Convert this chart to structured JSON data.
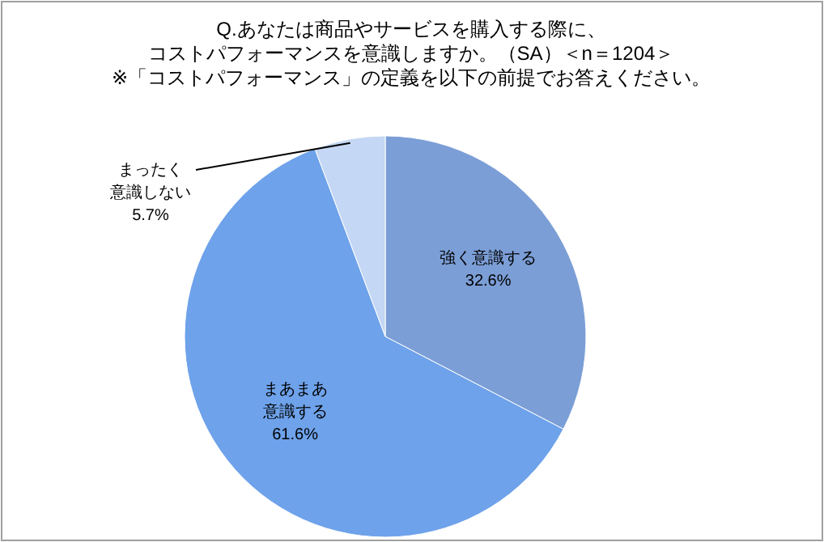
{
  "chart_data": {
    "type": "pie",
    "title": "Q.あなたは商品やサービスを購入する際に、コストパフォーマンスを意識しますか。（SA）＜n＝1204＞",
    "subtitle": "※「コストパフォーマンス」の定義を以下の前提でお答えください。",
    "categories": [
      "強く意識する",
      "まあまあ意識する",
      "まったく意識しない"
    ],
    "values": [
      32.6,
      61.6,
      5.7
    ],
    "value_labels": [
      "32.6%",
      "61.6%",
      "5.7%"
    ],
    "colors": [
      "#7b9ed6",
      "#6ea2ea",
      "#c4d7f4"
    ]
  }
}
